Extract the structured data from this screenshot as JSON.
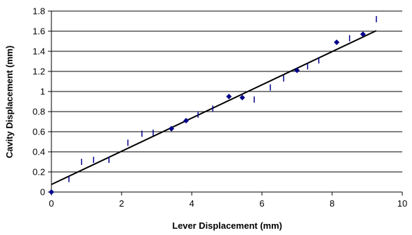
{
  "chart_data": {
    "type": "scatter",
    "title": "",
    "xlabel": "Lever Displacement (mm)",
    "ylabel": "Cavity Displacement (mm)",
    "xlim": [
      0,
      10
    ],
    "ylim": [
      0,
      1.8
    ],
    "x_ticks": [
      0,
      2,
      4,
      6,
      8,
      10
    ],
    "y_ticks": [
      0,
      0.2,
      0.4,
      0.6,
      0.8,
      1,
      1.2,
      1.4,
      1.6,
      1.8
    ],
    "x_tick_labels": [
      "0",
      "2",
      "4",
      "6",
      "8",
      "10"
    ],
    "y_tick_labels": [
      "0",
      "0.2",
      "0.4",
      "0.6",
      "0.8",
      "1",
      "1.2",
      "1.4",
      "1.6",
      "1.8"
    ],
    "grid": {
      "horizontal": true,
      "vertical": false
    },
    "series": [
      {
        "marker": "diamond",
        "color": "#00008B",
        "x": [
          0.0,
          3.42,
          3.84,
          5.06,
          5.44,
          7.0,
          8.13,
          8.88
        ],
        "y": [
          0.0,
          0.63,
          0.71,
          0.95,
          0.94,
          1.21,
          1.49,
          1.57
        ]
      },
      {
        "marker": "vertical-bar",
        "color": "#00008B",
        "x": [
          0.5,
          0.86,
          1.2,
          1.64,
          2.18,
          2.58,
          2.9,
          4.18,
          4.6,
          5.78,
          6.24,
          6.62,
          7.3,
          7.62,
          8.5,
          9.26
        ],
        "y": [
          0.13,
          0.3,
          0.32,
          0.32,
          0.49,
          0.58,
          0.59,
          0.77,
          0.83,
          0.92,
          1.04,
          1.13,
          1.25,
          1.31,
          1.53,
          1.72
        ]
      }
    ],
    "trendline": {
      "x": [
        0,
        9.26
      ],
      "y": [
        0.075,
        1.605
      ],
      "color": "#000000"
    }
  }
}
